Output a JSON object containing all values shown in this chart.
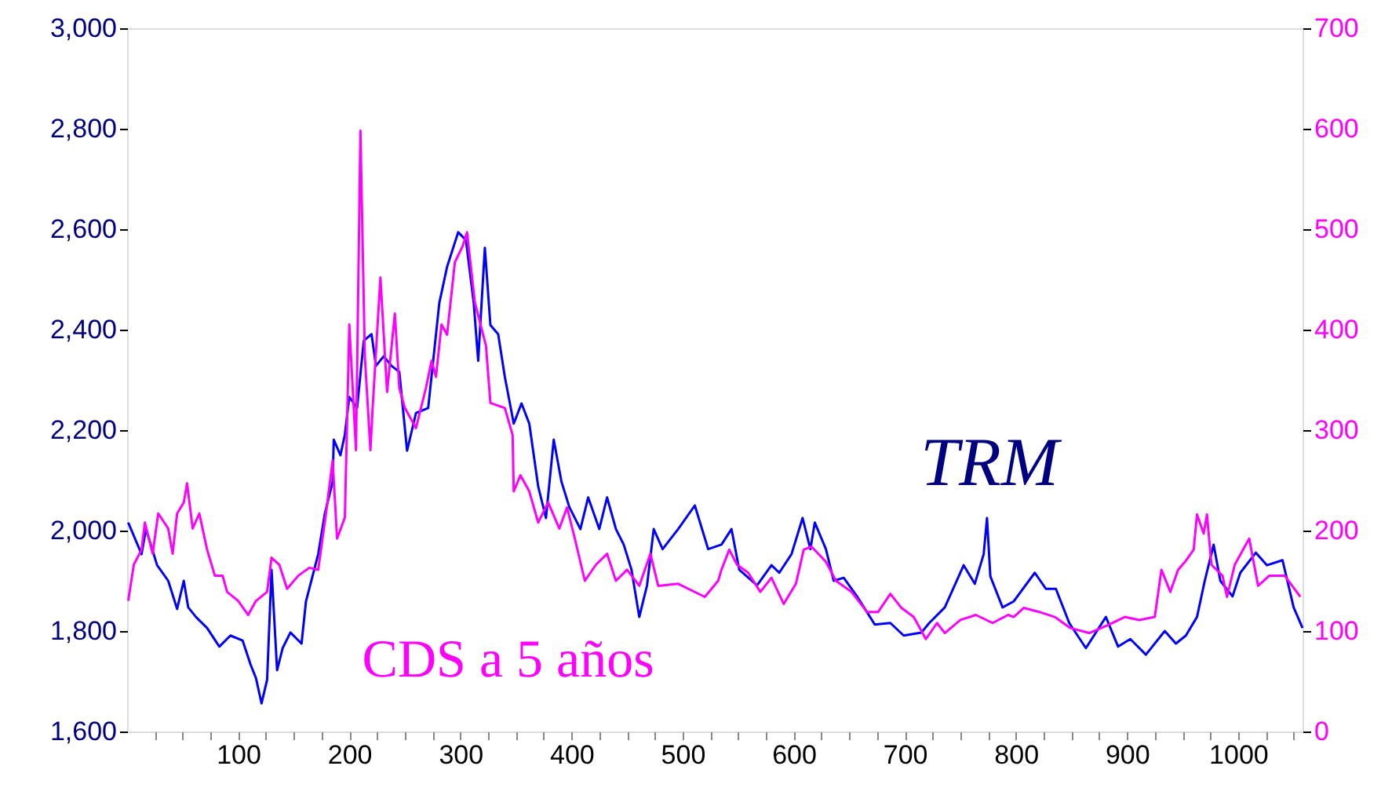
{
  "chart_data": {
    "type": "line",
    "xlim": [
      0,
      1058
    ],
    "xticks": [
      {
        "value": 25,
        "label": null
      },
      {
        "value": 50,
        "label": null
      },
      {
        "value": 75,
        "label": null
      },
      100,
      {
        "value": 125,
        "label": null
      },
      {
        "value": 150,
        "label": null
      },
      {
        "value": 175,
        "label": null
      },
      200,
      {
        "value": 225,
        "label": null
      },
      {
        "value": 250,
        "label": null
      },
      {
        "value": 275,
        "label": null
      },
      300,
      {
        "value": 325,
        "label": null
      },
      {
        "value": 350,
        "label": null
      },
      {
        "value": 375,
        "label": null
      },
      400,
      {
        "value": 425,
        "label": null
      },
      {
        "value": 450,
        "label": null
      },
      {
        "value": 475,
        "label": null
      },
      500,
      {
        "value": 525,
        "label": null
      },
      {
        "value": 550,
        "label": null
      },
      {
        "value": 575,
        "label": null
      },
      600,
      {
        "value": 625,
        "label": null
      },
      {
        "value": 650,
        "label": null
      },
      {
        "value": 675,
        "label": null
      },
      700,
      {
        "value": 725,
        "label": null
      },
      {
        "value": 750,
        "label": null
      },
      {
        "value": 775,
        "label": null
      },
      800,
      {
        "value": 825,
        "label": null
      },
      {
        "value": 850,
        "label": null
      },
      {
        "value": 875,
        "label": null
      },
      900,
      {
        "value": 925,
        "label": null
      },
      {
        "value": 950,
        "label": null
      },
      {
        "value": 975,
        "label": null
      },
      1000,
      {
        "value": 1025,
        "label": null
      },
      {
        "value": 1050,
        "label": null
      }
    ],
    "ylim": [
      1600,
      3000
    ],
    "yticks": [
      {
        "value": 1600,
        "label": "1,600"
      },
      {
        "value": 1800,
        "label": "1,800"
      },
      {
        "value": 2000,
        "label": "2,000"
      },
      {
        "value": 2200,
        "label": "2,200"
      },
      {
        "value": 2400,
        "label": "2,400"
      },
      {
        "value": 2600,
        "label": "2,600"
      },
      {
        "value": 2800,
        "label": "2,800"
      },
      {
        "value": 3000,
        "label": "3,000"
      }
    ],
    "y2lim": [
      0,
      700
    ],
    "y2ticks": [
      0,
      100,
      200,
      300,
      400,
      500,
      600,
      700
    ],
    "grid": false,
    "series": [
      {
        "name": "TRM",
        "color": "#0000ff",
        "x": [
          1,
          13,
          17,
          27,
          37,
          45,
          51,
          55,
          62,
          72,
          83,
          93,
          104,
          111,
          116,
          121,
          126,
          130,
          135,
          140,
          147,
          157,
          161,
          172,
          178,
          185,
          186,
          192,
          196,
          200,
          207,
          213,
          220,
          224,
          231,
          238,
          245,
          252,
          260,
          271,
          281,
          288,
          298,
          305,
          312,
          316,
          322,
          327,
          334,
          340,
          348,
          355,
          362,
          370,
          377,
          384,
          391,
          398,
          408,
          415,
          425,
          432,
          440,
          447,
          454,
          461,
          468,
          474,
          482,
          496,
          511,
          523,
          535,
          544,
          551,
          567,
          580,
          587,
          598,
          608,
          615,
          619,
          629,
          636,
          645,
          657,
          673,
          687,
          699,
          715,
          722,
          736,
          753,
          763,
          771,
          774,
          777,
          788,
          798,
          817,
          827,
          836,
          848,
          863,
          881,
          892,
          903,
          917,
          934,
          944,
          953,
          963,
          970,
          978,
          984,
          995,
          1002,
          1016,
          1026,
          1040,
          1050,
          1058
        ],
        "values": [
          2016,
          1953,
          2003,
          1931,
          1900,
          1844,
          1900,
          1847,
          1828,
          1806,
          1769,
          1791,
          1781,
          1734,
          1706,
          1656,
          1703,
          1922,
          1722,
          1766,
          1797,
          1775,
          1859,
          1953,
          2034,
          2097,
          2181,
          2150,
          2191,
          2266,
          2244,
          2378,
          2391,
          2328,
          2347,
          2328,
          2316,
          2159,
          2234,
          2244,
          2453,
          2525,
          2594,
          2578,
          2453,
          2338,
          2563,
          2409,
          2391,
          2306,
          2213,
          2253,
          2213,
          2088,
          2025,
          2181,
          2097,
          2047,
          2003,
          2066,
          2003,
          2066,
          2003,
          1972,
          1922,
          1828,
          1891,
          2003,
          1963,
          2003,
          2050,
          1963,
          1972,
          2003,
          1922,
          1891,
          1931,
          1916,
          1953,
          2025,
          1963,
          2016,
          1963,
          1900,
          1906,
          1869,
          1813,
          1816,
          1791,
          1797,
          1816,
          1847,
          1931,
          1894,
          1953,
          2025,
          1909,
          1847,
          1859,
          1916,
          1884,
          1884,
          1816,
          1766,
          1828,
          1769,
          1784,
          1753,
          1800,
          1775,
          1791,
          1828,
          1900,
          1972,
          1900,
          1869,
          1916,
          1956,
          1931,
          1941,
          1847,
          1806
        ]
      },
      {
        "name": "CDS a 5 años",
        "color": "#ff00ff",
        "axis": "y2",
        "x": [
          1,
          6,
          13,
          16,
          23,
          28,
          37,
          41,
          45,
          51,
          54,
          59,
          65,
          72,
          79,
          86,
          90,
          100,
          109,
          116,
          126,
          130,
          137,
          144,
          154,
          164,
          172,
          179,
          185,
          189,
          196,
          200,
          206,
          210,
          214,
          219,
          221,
          228,
          234,
          241,
          245,
          250,
          260,
          269,
          274,
          278,
          283,
          288,
          295,
          302,
          306,
          313,
          323,
          327,
          340,
          347,
          348,
          354,
          362,
          370,
          379,
          389,
          396,
          403,
          412,
          422,
          432,
          440,
          450,
          461,
          471,
          478,
          496,
          520,
          532,
          535,
          542,
          549,
          559,
          570,
          580,
          591,
          602,
          609,
          616,
          629,
          638,
          652,
          666,
          676,
          687,
          697,
          708,
          719,
          729,
          736,
          750,
          764,
          779,
          793,
          798,
          807,
          821,
          835,
          849,
          866,
          883,
          898,
          911,
          925,
          931,
          939,
          946,
          953,
          960,
          963,
          969,
          972,
          976,
          986,
          990,
          997,
          1010,
          1018,
          1028,
          1042,
          1056
        ],
        "values": [
          130,
          166,
          181,
          208,
          177,
          217,
          202,
          177,
          217,
          228,
          247,
          202,
          217,
          181,
          155,
          155,
          139,
          130,
          116,
          130,
          139,
          173,
          166,
          142,
          155,
          163,
          161,
          217,
          270,
          192,
          213,
          405,
          280,
          598,
          373,
          280,
          322,
          452,
          338,
          416,
          342,
          322,
          302,
          342,
          369,
          353,
          405,
          395,
          467,
          483,
          497,
          427,
          384,
          327,
          322,
          295,
          239,
          255,
          239,
          208,
          228,
          202,
          223,
          192,
          150,
          166,
          177,
          150,
          161,
          145,
          177,
          145,
          147,
          134,
          150,
          161,
          181,
          166,
          158,
          139,
          153,
          127,
          147,
          181,
          184,
          169,
          150,
          139,
          119,
          119,
          137,
          123,
          114,
          92,
          108,
          98,
          111,
          116,
          108,
          116,
          114,
          123,
          119,
          114,
          103,
          98,
          106,
          114,
          111,
          114,
          161,
          139,
          161,
          170,
          181,
          216,
          197,
          216,
          166,
          155,
          134,
          166,
          192,
          145,
          155,
          155,
          134
        ]
      }
    ]
  }
}
